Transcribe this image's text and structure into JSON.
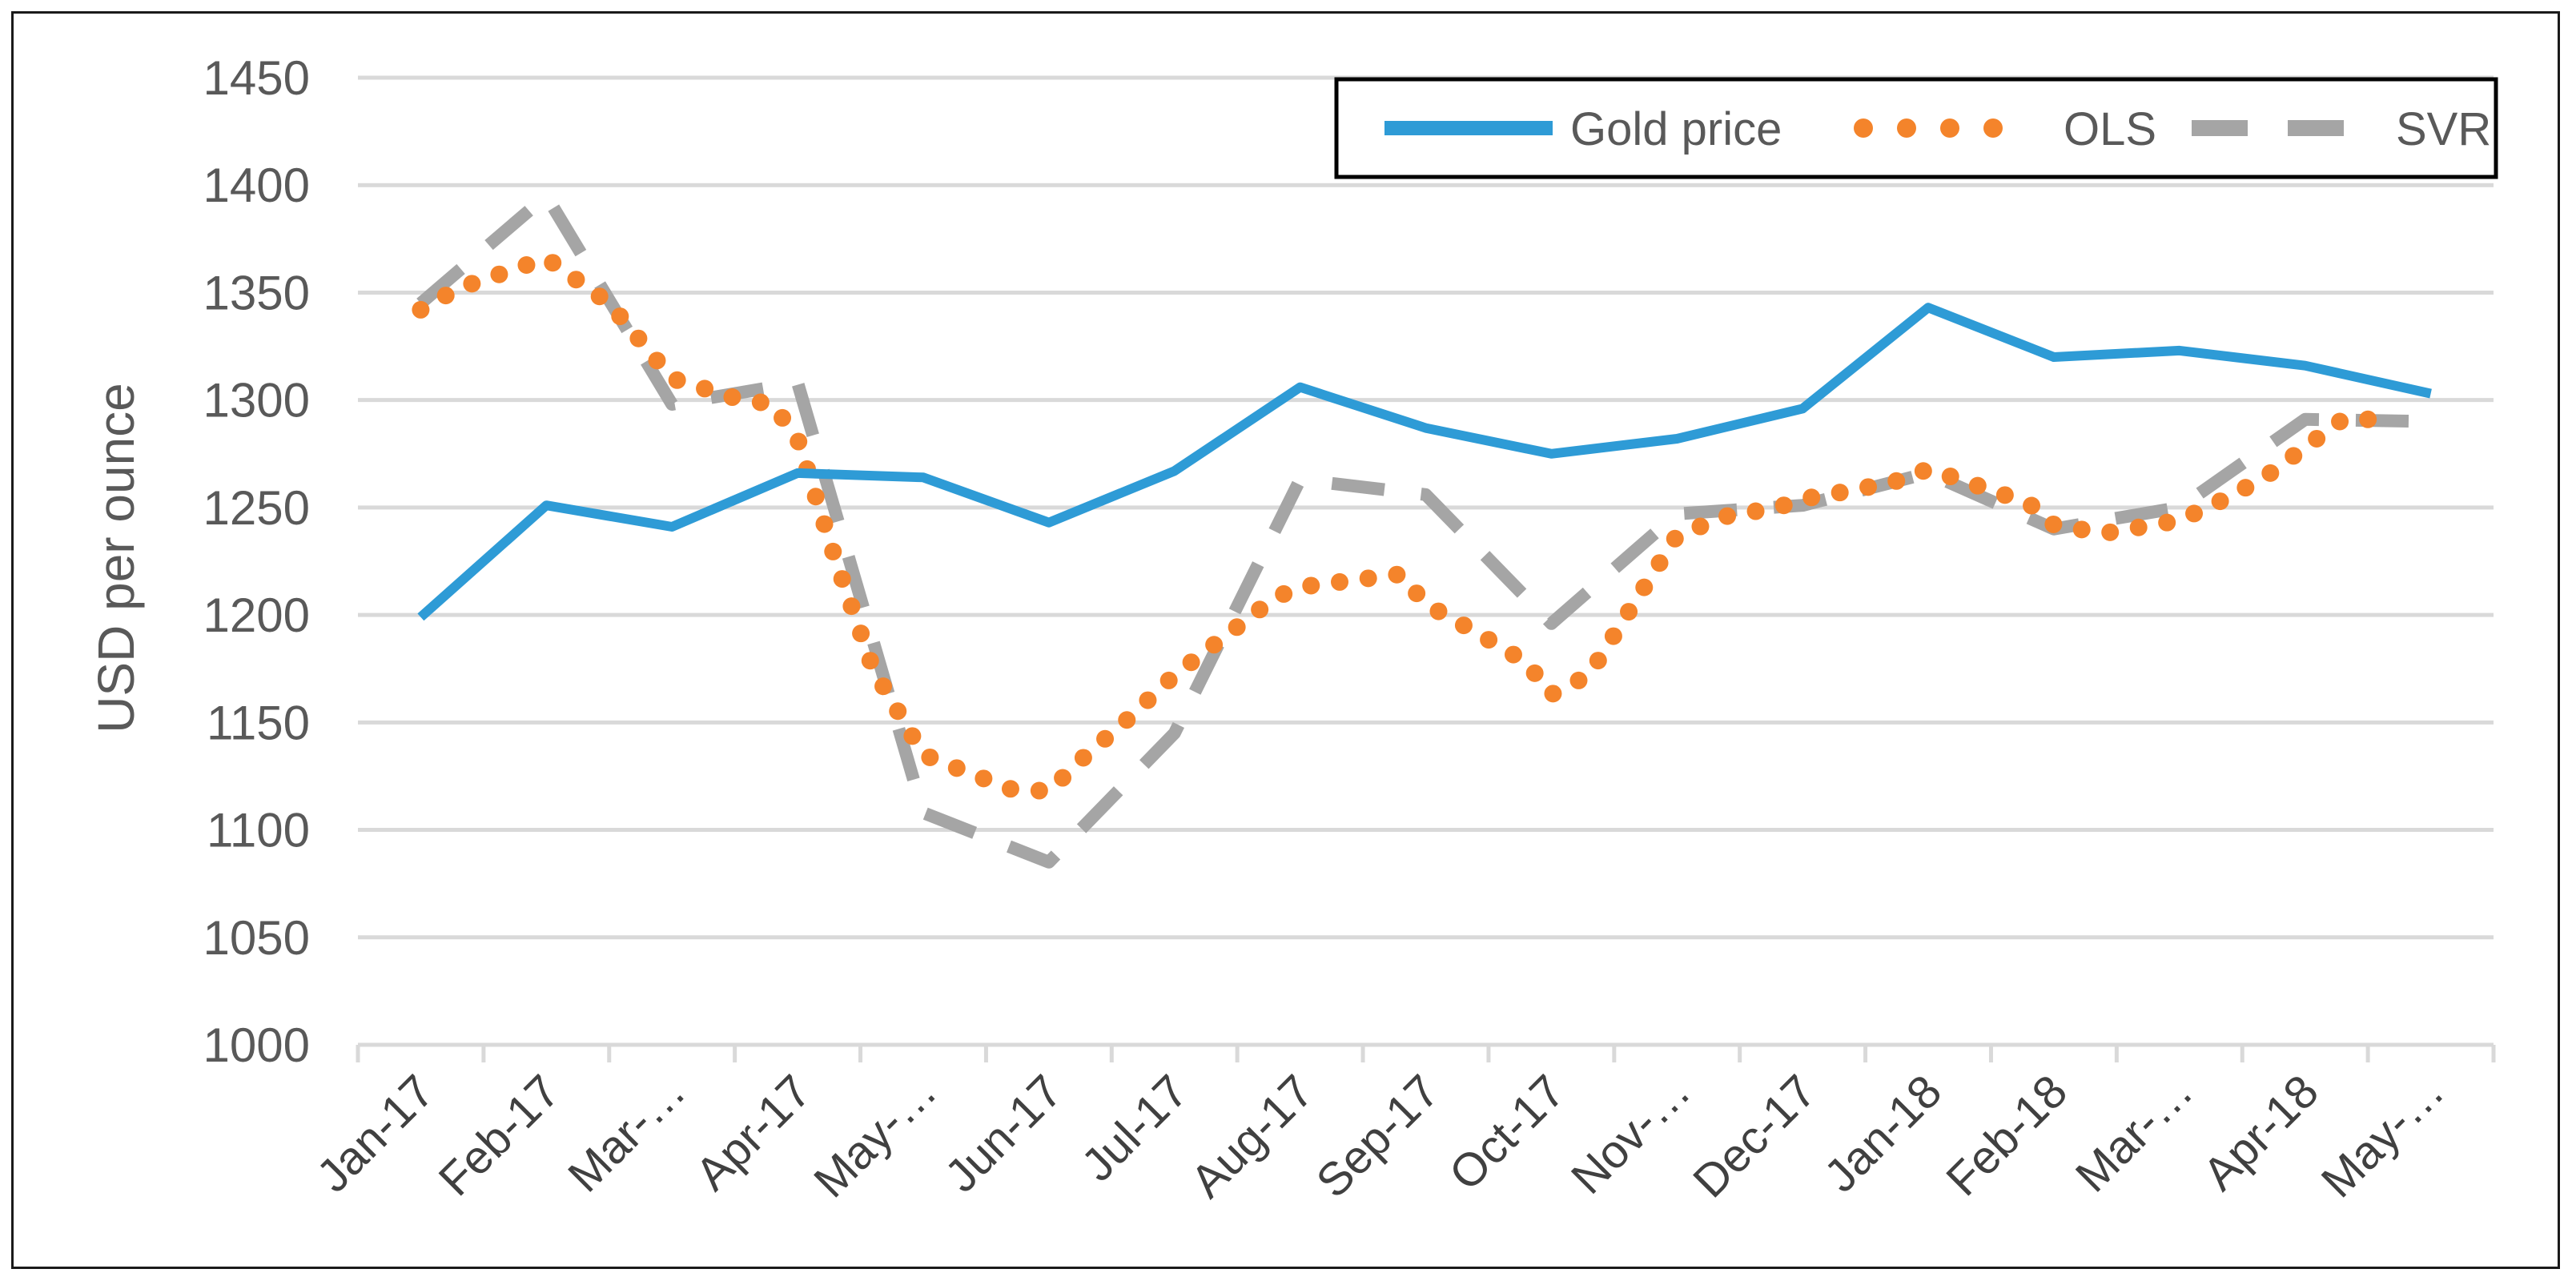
{
  "chart_data": {
    "type": "line",
    "title": "",
    "xlabel": "",
    "ylabel": "USD per ounce",
    "ylim": [
      1000,
      1450
    ],
    "ytick_step": 50,
    "grid": true,
    "legend_position": "top-right",
    "categories": [
      "Jan-17",
      "Feb-17",
      "Mar-…",
      "Apr-17",
      "May-…",
      "Jun-17",
      "Jul-17",
      "Aug-17",
      "Sep-17",
      "Oct-17",
      "Nov-…",
      "Dec-17",
      "Jan-18",
      "Feb-18",
      "Mar-…",
      "Apr-18",
      "May-…"
    ],
    "series": [
      {
        "name": "Gold price",
        "style": "solid",
        "color": "#2E9BD6",
        "x": [
          0.5,
          1.5,
          2.5,
          3.5,
          4.5,
          5.5,
          6.5,
          7.5,
          8.5,
          9.5,
          10.5,
          11.5,
          12.5,
          13.5,
          14.5,
          15.5,
          16.5
        ],
        "values": [
          1199,
          1251,
          1241,
          1266,
          1264,
          1243,
          1267,
          1306,
          1287,
          1275,
          1282,
          1296,
          1343,
          1320,
          1323,
          1316,
          1303
        ]
      },
      {
        "name": "OLS",
        "style": "dotted",
        "color": "#F4842B",
        "x": [
          0.5,
          0.8,
          1.1,
          1.5,
          2,
          2.5,
          3,
          3.3,
          3.5,
          3.8,
          4.1,
          4.5,
          4.8,
          5.2,
          5.5,
          5.8,
          6.1,
          6.5,
          6.9,
          7.3,
          7.5,
          7.9,
          8.3,
          8.5,
          8.9,
          9.3,
          9.5,
          9.8,
          10.1,
          10.5,
          10.9,
          11.3,
          11.5,
          11.9,
          12.3,
          12.5,
          12.9,
          13.3,
          13.5,
          13.9,
          14.3,
          14.5,
          14.9,
          15.2,
          15.5,
          15.8,
          16.2
        ],
        "values": [
          1342,
          1352,
          1358,
          1366,
          1345,
          1310,
          1301,
          1298,
          1282,
          1226,
          1175,
          1135,
          1128,
          1119,
          1118,
          1135,
          1150,
          1172,
          1190,
          1208,
          1213,
          1216,
          1219,
          1205,
          1192,
          1178,
          1163,
          1172,
          1200,
          1237,
          1246,
          1250,
          1254,
          1258,
          1263,
          1268,
          1260,
          1252,
          1242,
          1238,
          1242,
          1244,
          1255,
          1265,
          1278,
          1291,
          1291
        ]
      },
      {
        "name": "SVR",
        "style": "dashed",
        "color": "#A5A5A5",
        "x": [
          0.5,
          1.5,
          2.5,
          3.5,
          4.5,
          5.5,
          6.5,
          7.5,
          8.5,
          9.5,
          10.5,
          11.5,
          12.5,
          13.5,
          14.5,
          15.5,
          16.5
        ],
        "values": [
          1345,
          1395,
          1298,
          1308,
          1108,
          1085,
          1145,
          1263,
          1256,
          1196,
          1247,
          1251,
          1266,
          1240,
          1250,
          1291,
          1290
        ]
      }
    ]
  }
}
